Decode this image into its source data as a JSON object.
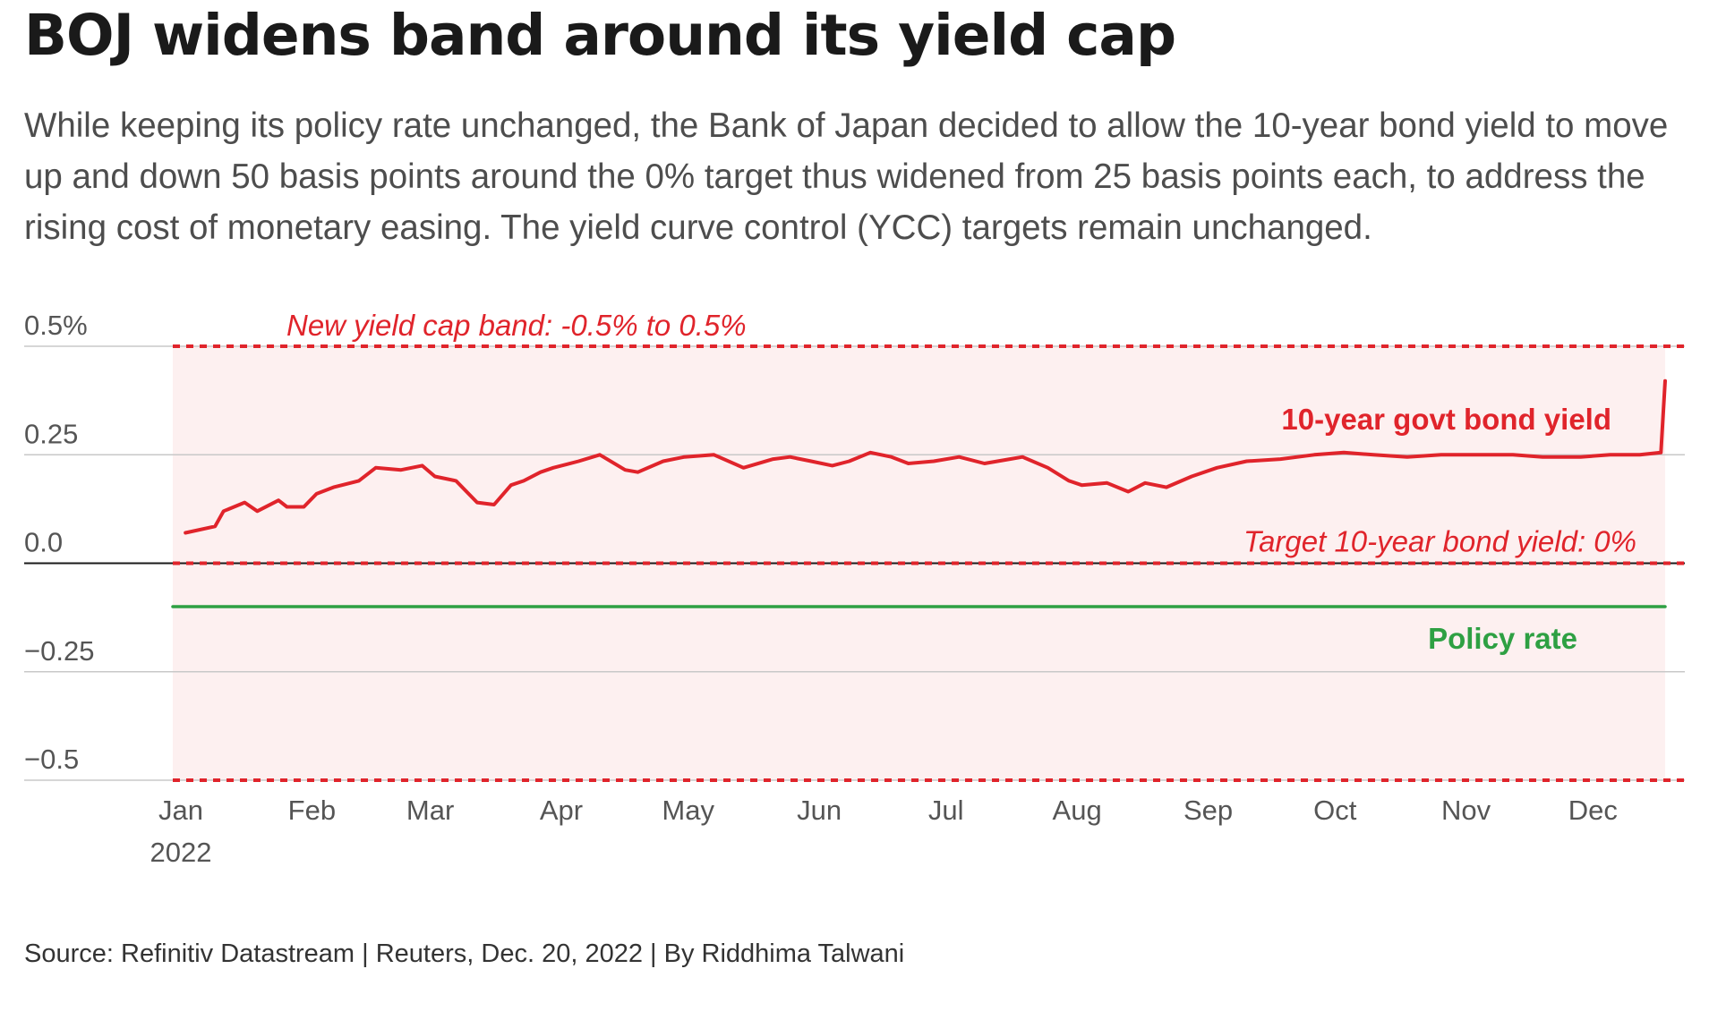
{
  "headline": "BOJ widens band around its yield cap",
  "subtitle": "While keeping its policy rate unchanged, the Bank of Japan decided to allow the 10-year bond yield to move up and down 50 basis points around the 0% target thus widened from 25 basis points each, to address the rising cost of monetary easing. The yield curve control (YCC) targets remain unchanged.",
  "source": "Source: Refinitiv Datastream | Reuters, Dec. 20, 2022 | By Riddhima Talwani",
  "colors": {
    "yield_line": "#e0242b",
    "policy_line": "#2ea043",
    "band_fill": "#fdf0f0",
    "band_lines": "#e0242b",
    "grid": "#c8c8c8",
    "zero_line": "#1a1a1a"
  },
  "chart_data": {
    "type": "line",
    "title": "BOJ widens band around its yield cap",
    "xlabel": "",
    "ylabel": "",
    "ylim": [
      -0.5,
      0.5
    ],
    "y_ticks": [
      {
        "value": 0.5,
        "label": "0.5%"
      },
      {
        "value": 0.25,
        "label": "0.25"
      },
      {
        "value": 0.0,
        "label": "0.0"
      },
      {
        "value": -0.25,
        "label": "−0.25"
      },
      {
        "value": -0.5,
        "label": "−0.5"
      }
    ],
    "x_range": [
      "2022-01-01",
      "2022-12-20"
    ],
    "x_ticks": [
      {
        "date": "2022-01-01",
        "label": "Jan",
        "sublabel": "2022"
      },
      {
        "date": "2022-02-01",
        "label": "Feb"
      },
      {
        "date": "2022-03-01",
        "label": "Mar"
      },
      {
        "date": "2022-04-01",
        "label": "Apr"
      },
      {
        "date": "2022-05-01",
        "label": "May"
      },
      {
        "date": "2022-06-01",
        "label": "Jun"
      },
      {
        "date": "2022-07-01",
        "label": "Jul"
      },
      {
        "date": "2022-08-01",
        "label": "Aug"
      },
      {
        "date": "2022-09-01",
        "label": "Sep"
      },
      {
        "date": "2022-10-01",
        "label": "Oct"
      },
      {
        "date": "2022-11-01",
        "label": "Nov"
      },
      {
        "date": "2022-12-01",
        "label": "Dec"
      }
    ],
    "band": {
      "upper": 0.5,
      "lower": -0.5,
      "label": "New yield cap band: -0.5% to 0.5%"
    },
    "target": {
      "value": 0.0,
      "label": "Target 10-year bond yield: 0%"
    },
    "series": [
      {
        "name": "10-year govt bond yield",
        "color": "#e0242b",
        "x": [
          "2022-01-04",
          "2022-01-11",
          "2022-01-13",
          "2022-01-18",
          "2022-01-21",
          "2022-01-26",
          "2022-01-28",
          "2022-02-01",
          "2022-02-04",
          "2022-02-08",
          "2022-02-14",
          "2022-02-18",
          "2022-02-24",
          "2022-03-01",
          "2022-03-04",
          "2022-03-09",
          "2022-03-14",
          "2022-03-18",
          "2022-03-22",
          "2022-03-25",
          "2022-03-29",
          "2022-04-01",
          "2022-04-07",
          "2022-04-12",
          "2022-04-18",
          "2022-04-21",
          "2022-04-27",
          "2022-05-02",
          "2022-05-09",
          "2022-05-16",
          "2022-05-23",
          "2022-05-27",
          "2022-06-01",
          "2022-06-06",
          "2022-06-10",
          "2022-06-15",
          "2022-06-20",
          "2022-06-24",
          "2022-06-30",
          "2022-07-06",
          "2022-07-12",
          "2022-07-18",
          "2022-07-21",
          "2022-07-27",
          "2022-08-01",
          "2022-08-04",
          "2022-08-10",
          "2022-08-15",
          "2022-08-19",
          "2022-08-24",
          "2022-08-30",
          "2022-09-05",
          "2022-09-12",
          "2022-09-20",
          "2022-09-28",
          "2022-10-05",
          "2022-10-12",
          "2022-10-20",
          "2022-10-28",
          "2022-11-04",
          "2022-11-14",
          "2022-11-21",
          "2022-11-30",
          "2022-12-07",
          "2022-12-14",
          "2022-12-19",
          "2022-12-20"
        ],
        "values": [
          0.07,
          0.085,
          0.12,
          0.14,
          0.12,
          0.145,
          0.13,
          0.13,
          0.16,
          0.175,
          0.19,
          0.22,
          0.215,
          0.225,
          0.2,
          0.19,
          0.14,
          0.135,
          0.18,
          0.19,
          0.21,
          0.22,
          0.235,
          0.25,
          0.215,
          0.21,
          0.235,
          0.245,
          0.25,
          0.22,
          0.24,
          0.245,
          0.235,
          0.225,
          0.235,
          0.255,
          0.245,
          0.23,
          0.235,
          0.245,
          0.23,
          0.24,
          0.245,
          0.22,
          0.19,
          0.18,
          0.185,
          0.165,
          0.185,
          0.175,
          0.2,
          0.22,
          0.235,
          0.24,
          0.25,
          0.255,
          0.25,
          0.245,
          0.25,
          0.25,
          0.25,
          0.245,
          0.245,
          0.25,
          0.25,
          0.255,
          0.42
        ]
      },
      {
        "name": "Policy rate",
        "color": "#2ea043",
        "x": [
          "2022-01-01",
          "2022-12-20"
        ],
        "values": [
          -0.1,
          -0.1
        ]
      }
    ],
    "grid": true,
    "legend": "inline labels"
  }
}
